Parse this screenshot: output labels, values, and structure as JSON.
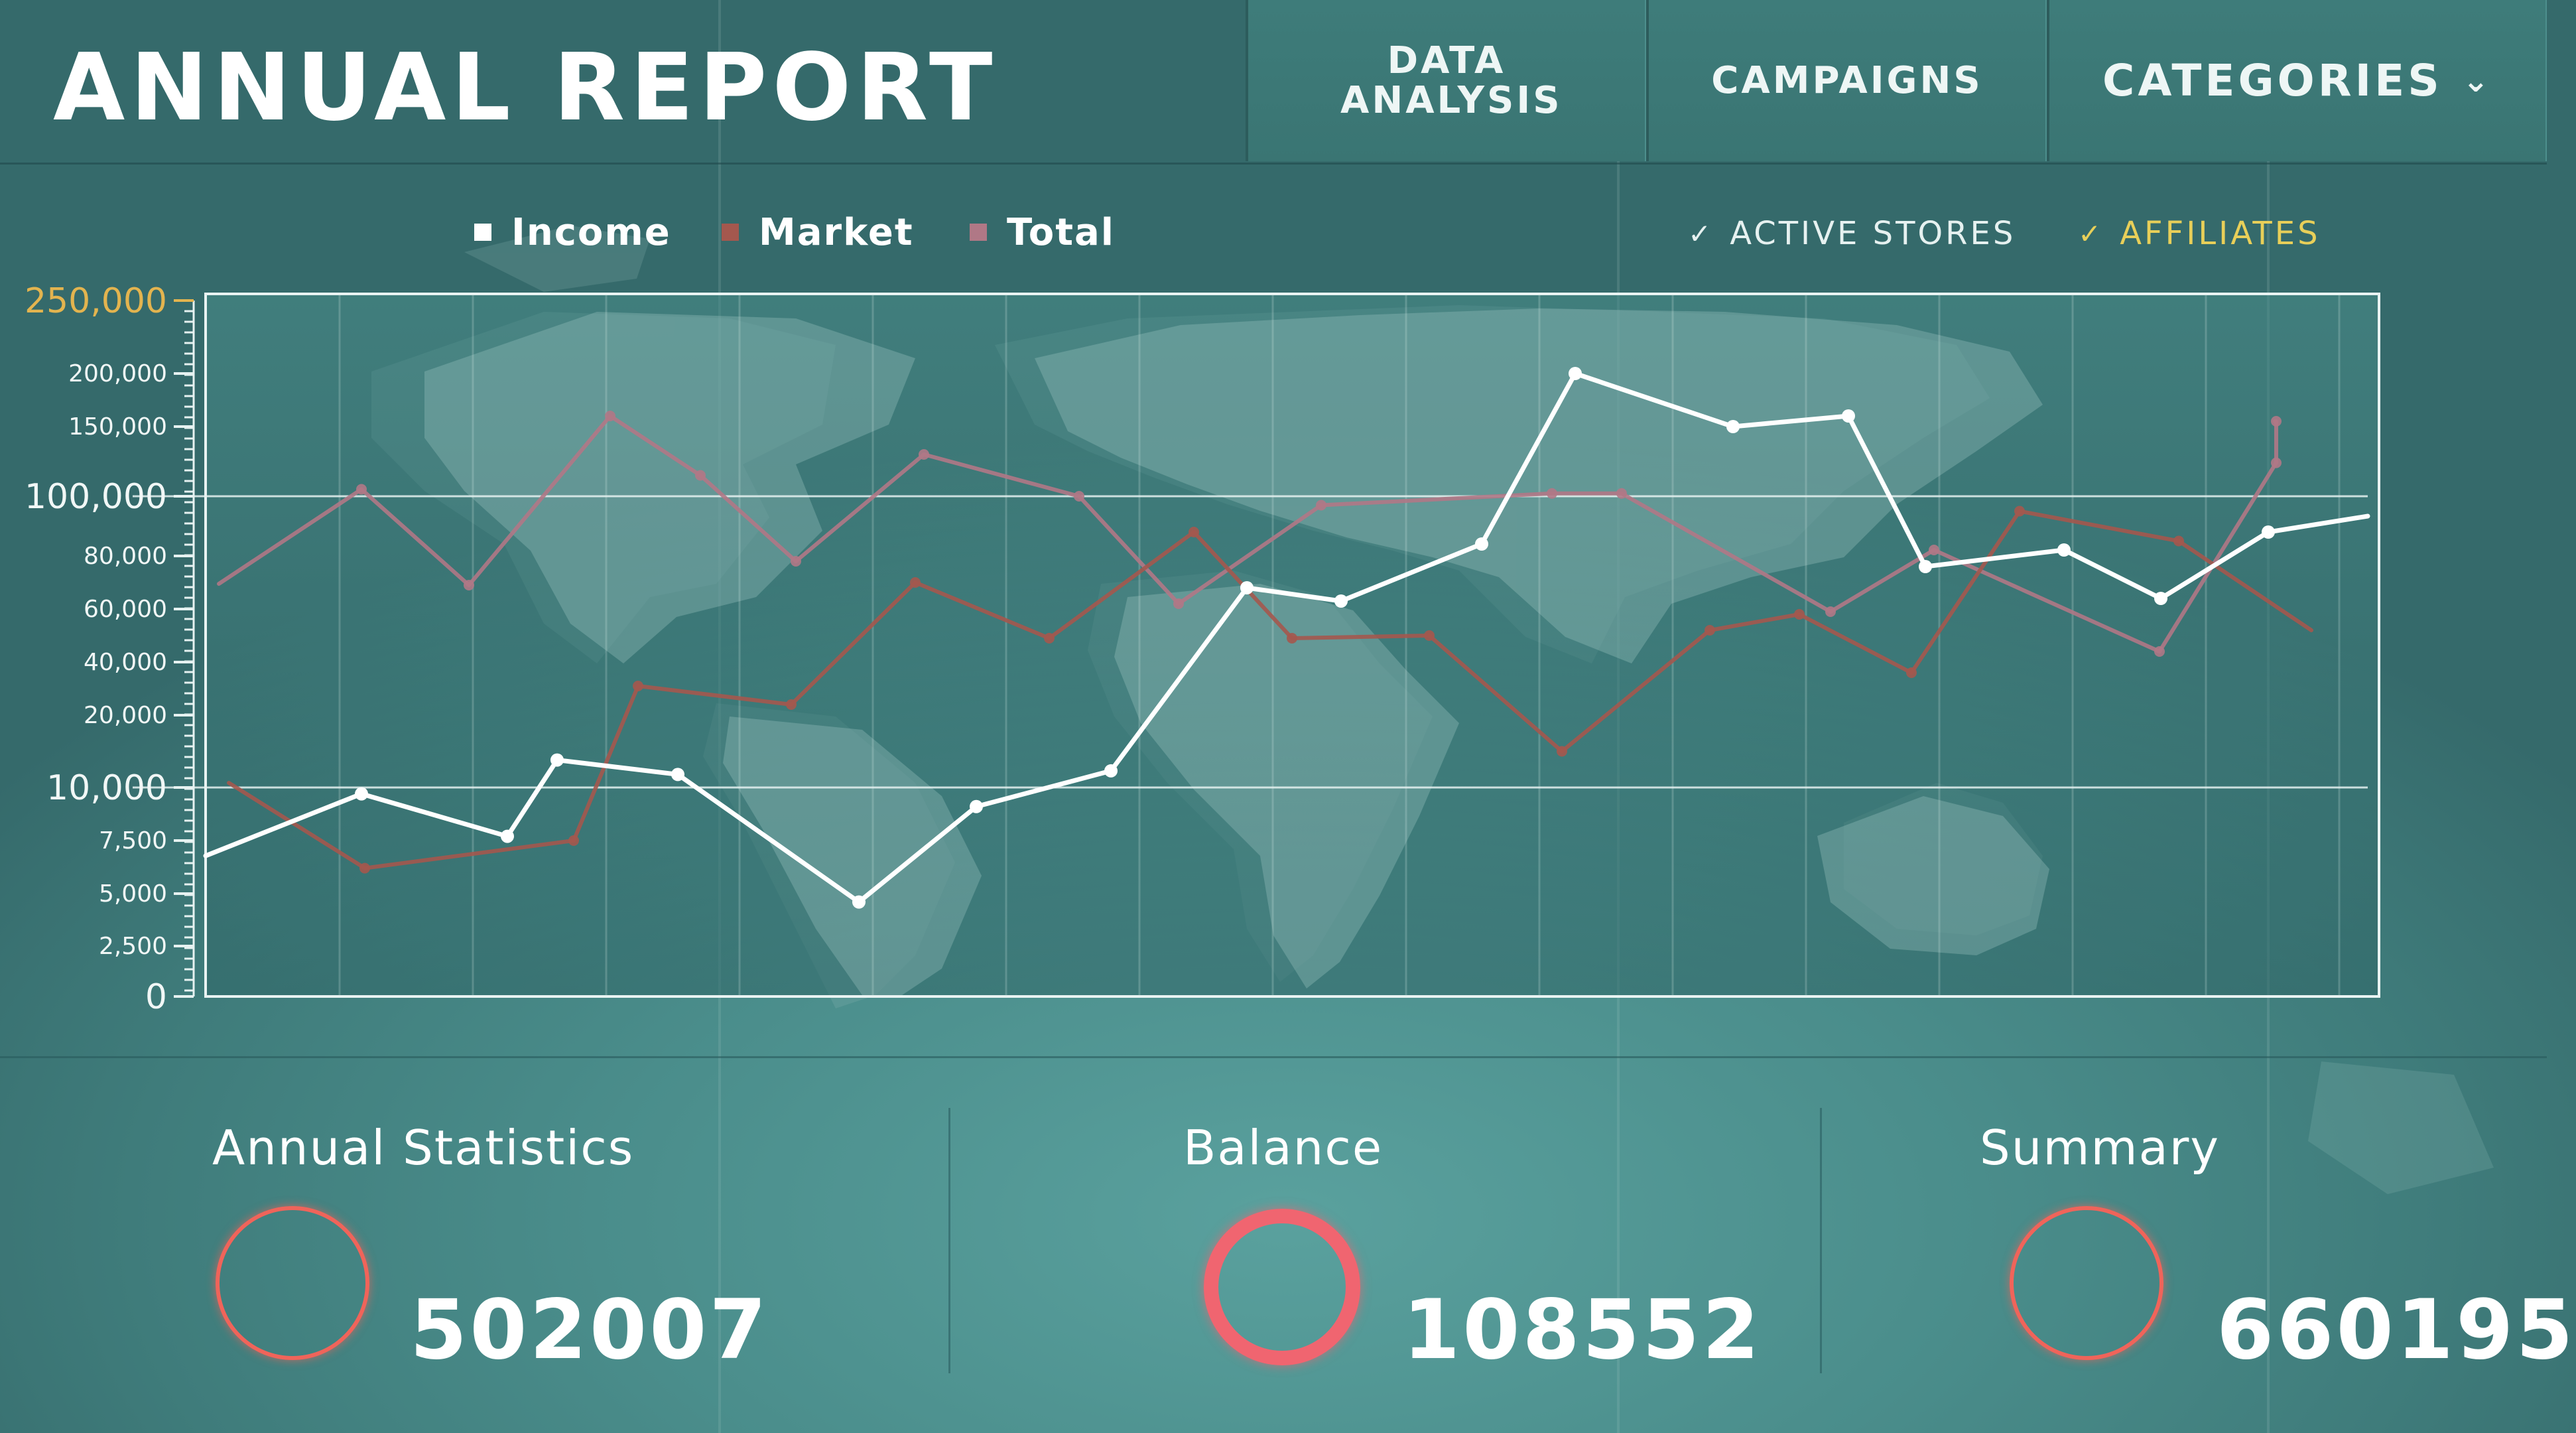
{
  "header": {
    "title": "ANNUAL REPORT",
    "tabs": [
      {
        "label": "DATA ANALYSIS"
      },
      {
        "label": "CAMPAIGNS"
      },
      {
        "label": "CATEGORIES",
        "icon": "chevron-down-icon"
      }
    ]
  },
  "legend": {
    "items": [
      {
        "label": "Income",
        "color": "#ffffff"
      },
      {
        "label": "Market",
        "color": "#a4584e"
      },
      {
        "label": "Total",
        "color": "#b07886"
      }
    ]
  },
  "filters": [
    {
      "label": "ACTIVE STORES",
      "checked": true,
      "color": "#e6f1f0",
      "icon": "checkmark-icon"
    },
    {
      "label": "AFFILIATES",
      "checked": true,
      "color": "#e8cf59",
      "icon": "checkmark-icon"
    }
  ],
  "chart_data": {
    "type": "line",
    "y_scale": "log",
    "ylim": [
      0,
      250000
    ],
    "ytick_labels": [
      "250,000",
      "200,000",
      "150,000",
      "100,000",
      "80,000",
      "60,000",
      "40,000",
      "20,000",
      "10,000",
      "7,500",
      "5,000",
      "2,500",
      "0"
    ],
    "major_ticks": [
      "250,000",
      "100,000",
      "10,000",
      "0"
    ],
    "accent_tick_color": "#e3b44f",
    "background": "world-map",
    "grid": true,
    "series": [
      {
        "name": "Income",
        "color": "#ffffff",
        "values": [
          9700,
          7700,
          13800,
          11800,
          4600,
          9100,
          12300,
          68000,
          63000,
          84000,
          200000,
          150000,
          160000,
          76000,
          82000,
          64000,
          88000
        ]
      },
      {
        "name": "Market",
        "color": "#a4584e",
        "values": [
          6200,
          7500,
          31000,
          24000,
          70000,
          49000,
          88000,
          49000,
          50000,
          15000,
          52000,
          58000,
          36000,
          95000,
          85000
        ]
      },
      {
        "name": "Total",
        "color": "#b07886",
        "values": [
          105000,
          69000,
          160000,
          115000,
          78000,
          130000,
          100000,
          62000,
          97000,
          102000,
          102000,
          59000,
          82000,
          44000,
          124000,
          155000
        ]
      }
    ]
  },
  "stats": [
    {
      "title": "Annual Statistics",
      "value": "502007",
      "ring_color": "#f0645a"
    },
    {
      "title": "Balance",
      "value": "108552",
      "ring_color": "#f06570"
    },
    {
      "title": "Summary",
      "value": "660195",
      "ring_color": "#f0645a"
    }
  ]
}
